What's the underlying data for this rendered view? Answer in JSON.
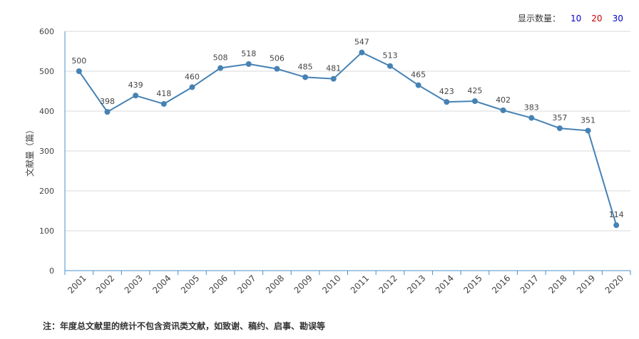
{
  "controls": {
    "label": "显示数量：",
    "options": [
      {
        "label": "10",
        "color": "#0000cc"
      },
      {
        "label": "20",
        "color": "#cc0000"
      },
      {
        "label": "30",
        "color": "#0000cc"
      }
    ]
  },
  "chart_data": {
    "type": "line",
    "ylabel": "文献量（篇）",
    "ylim": [
      0,
      600
    ],
    "yticks": [
      "0",
      "100",
      "200",
      "300",
      "400",
      "500",
      "600"
    ],
    "grid": true,
    "categories": [
      "2001",
      "2002",
      "2003",
      "2004",
      "2005",
      "2006",
      "2007",
      "2008",
      "2009",
      "2010",
      "2011",
      "2012",
      "2013",
      "2014",
      "2015",
      "2016",
      "2017",
      "2018",
      "2019",
      "2020"
    ],
    "series": [
      {
        "values": [
          500,
          398,
          439,
          418,
          460,
          508,
          518,
          506,
          485,
          481,
          547,
          513,
          465,
          423,
          425,
          402,
          383,
          357,
          351,
          114
        ],
        "color": "#4682b4"
      }
    ]
  },
  "footnote": "注：年度总文献里的统计不包含资讯类文献，如致谢、稿约、启事、勘误等"
}
